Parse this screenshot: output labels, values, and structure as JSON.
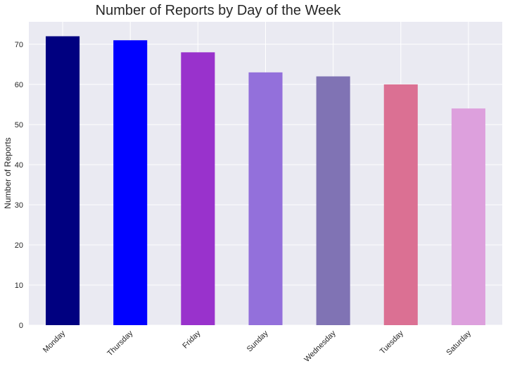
{
  "chart_data": {
    "type": "bar",
    "title": "Number of Reports by Day of the Week",
    "xlabel": "",
    "ylabel": "Number of Reports",
    "categories": [
      "Monday",
      "Thursday",
      "Friday",
      "Sunday",
      "Wednesday",
      "Tuesday",
      "Saturday"
    ],
    "values": [
      72,
      71,
      68,
      63,
      62,
      60,
      54
    ],
    "colors": [
      "#000080",
      "#0000ff",
      "#9932cc",
      "#9370db",
      "#8073b4",
      "#db7093",
      "#dda0dd"
    ],
    "ylim": [
      0,
      75.6
    ],
    "yticks": [
      0,
      10,
      20,
      30,
      40,
      50,
      60,
      70
    ],
    "grid": true,
    "legend": "none",
    "background": "#eaeaf2"
  }
}
